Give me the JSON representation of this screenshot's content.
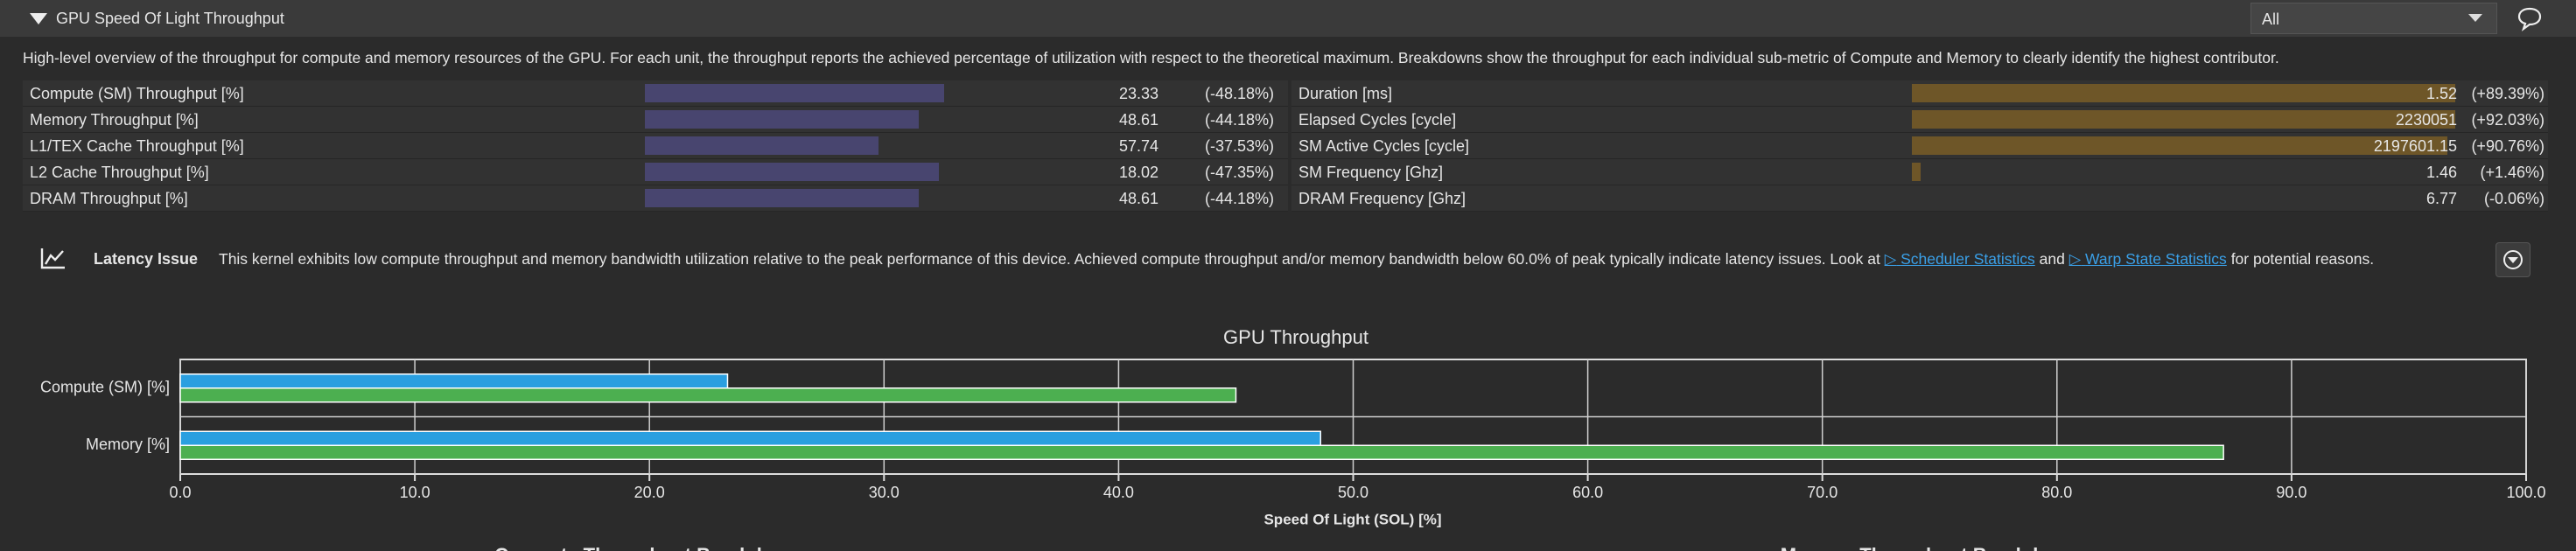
{
  "header": {
    "title": "GPU Speed Of Light Throughput",
    "filter": "All"
  },
  "description": "High-level overview of the throughput for compute and memory resources of the GPU. For each unit, the throughput reports the achieved percentage of utilization with respect to the theoretical maximum. Breakdowns show the throughput for each individual sub-metric of Compute and Memory to clearly identify the highest contributor.",
  "metrics": {
    "left": [
      {
        "name": "Compute (SM) Throughput [%]",
        "value": 23.33,
        "change": "(-48.18%)"
      },
      {
        "name": "Memory Throughput [%]",
        "value": 48.61,
        "change": "(-44.18%)"
      },
      {
        "name": "L1/TEX Cache Throughput [%]",
        "value": 57.74,
        "change": "(-37.53%)"
      },
      {
        "name": "L2 Cache Throughput [%]",
        "value": 18.02,
        "change": "(-47.35%)"
      },
      {
        "name": "DRAM Throughput [%]",
        "value": 48.61,
        "change": "(-44.18%)"
      }
    ],
    "right": [
      {
        "name": "Duration [ms]",
        "value": 1.52,
        "change": "(+89.39%)"
      },
      {
        "name": "Elapsed Cycles [cycle]",
        "value": 2230051,
        "change": "(+92.03%)"
      },
      {
        "name": "SM Active Cycles [cycle]",
        "value": 2197601.15,
        "change": "(+90.76%)"
      },
      {
        "name": "SM Frequency [Ghz]",
        "value": 1.46,
        "change": "(+1.46%)"
      },
      {
        "name": "DRAM Frequency [Ghz]",
        "value": 6.77,
        "change": "(-0.06%)"
      }
    ]
  },
  "latency": {
    "title": "Latency Issue",
    "text_before": "This kernel exhibits low compute throughput and memory bandwidth utilization relative to the peak performance of this device. Achieved compute throughput and/or memory bandwidth below 60.0% of peak typically indicate latency issues. Look at",
    "link1": "Scheduler Statistics",
    "text_mid": "and",
    "link2": "Warp State Statistics",
    "text_after": "for potential reasons."
  },
  "chart_data": {
    "type": "hbar",
    "title": "GPU Throughput",
    "categories": [
      "Compute (SM) [%]",
      "Memory [%]"
    ],
    "series": [
      {
        "color": "#2a9fe0",
        "values": [
          23.33,
          48.61
        ]
      },
      {
        "color": "#4caf50",
        "values": [
          45.0,
          87.1
        ]
      }
    ],
    "xlim": [
      0,
      100
    ],
    "xticks": [
      {
        "value": 0,
        "label": "0.0"
      },
      {
        "value": 10,
        "label": "10.0"
      },
      {
        "value": 20,
        "label": "20.0"
      },
      {
        "value": 30,
        "label": "30.0"
      },
      {
        "value": 40,
        "label": "40.0"
      },
      {
        "value": 50,
        "label": "50.0"
      },
      {
        "value": 60,
        "label": "60.0"
      },
      {
        "value": 70,
        "label": "70.0"
      },
      {
        "value": 80,
        "label": "80.0"
      },
      {
        "value": 90,
        "label": "90.0"
      },
      {
        "value": 100,
        "label": "100.0"
      }
    ],
    "xlabel": "Speed Of Light (SOL) [%]",
    "grid": true
  },
  "sections": [
    "Compute Throughput Breakdown",
    "Memory Throughput Breakdown"
  ]
}
